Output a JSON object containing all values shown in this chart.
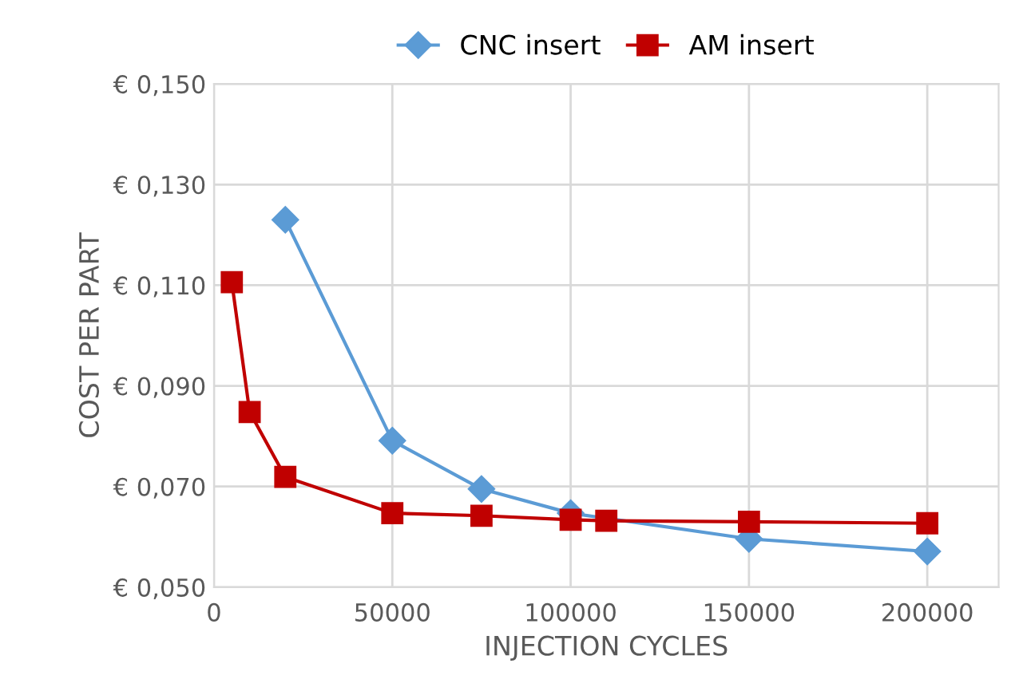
{
  "chart_data": {
    "type": "line",
    "xlabel": "INJECTION CYCLES",
    "ylabel": "COST PER PART",
    "series": [
      {
        "name": "CNC insert",
        "color": "#5b9bd5",
        "marker": "diamond",
        "x": [
          20000,
          50000,
          75000,
          100000,
          150000,
          200000
        ],
        "values": [
          0.123,
          0.0791,
          0.0695,
          0.0647,
          0.0596,
          0.0571
        ]
      },
      {
        "name": "AM insert",
        "color": "#c00000",
        "marker": "square",
        "x": [
          5000,
          10000,
          20000,
          50000,
          75000,
          100000,
          110000,
          150000,
          200000
        ],
        "values": [
          0.1106,
          0.0848,
          0.0719,
          0.0647,
          0.0642,
          0.0634,
          0.0632,
          0.063,
          0.0627
        ]
      }
    ],
    "xlim": [
      0,
      220000
    ],
    "xticks": [
      0,
      50000,
      100000,
      150000,
      200000
    ],
    "ylim": [
      0.05,
      0.15
    ],
    "yticks": [
      {
        "value": 0.05,
        "label": "€ 0,050"
      },
      {
        "value": 0.07,
        "label": "€ 0,070"
      },
      {
        "value": 0.09,
        "label": "€ 0,090"
      },
      {
        "value": 0.11,
        "label": "€ 0,110"
      },
      {
        "value": 0.13,
        "label": "€ 0,130"
      },
      {
        "value": 0.15,
        "label": "€ 0,150"
      }
    ],
    "grid": true,
    "legend": "top",
    "line_style": "solid"
  }
}
